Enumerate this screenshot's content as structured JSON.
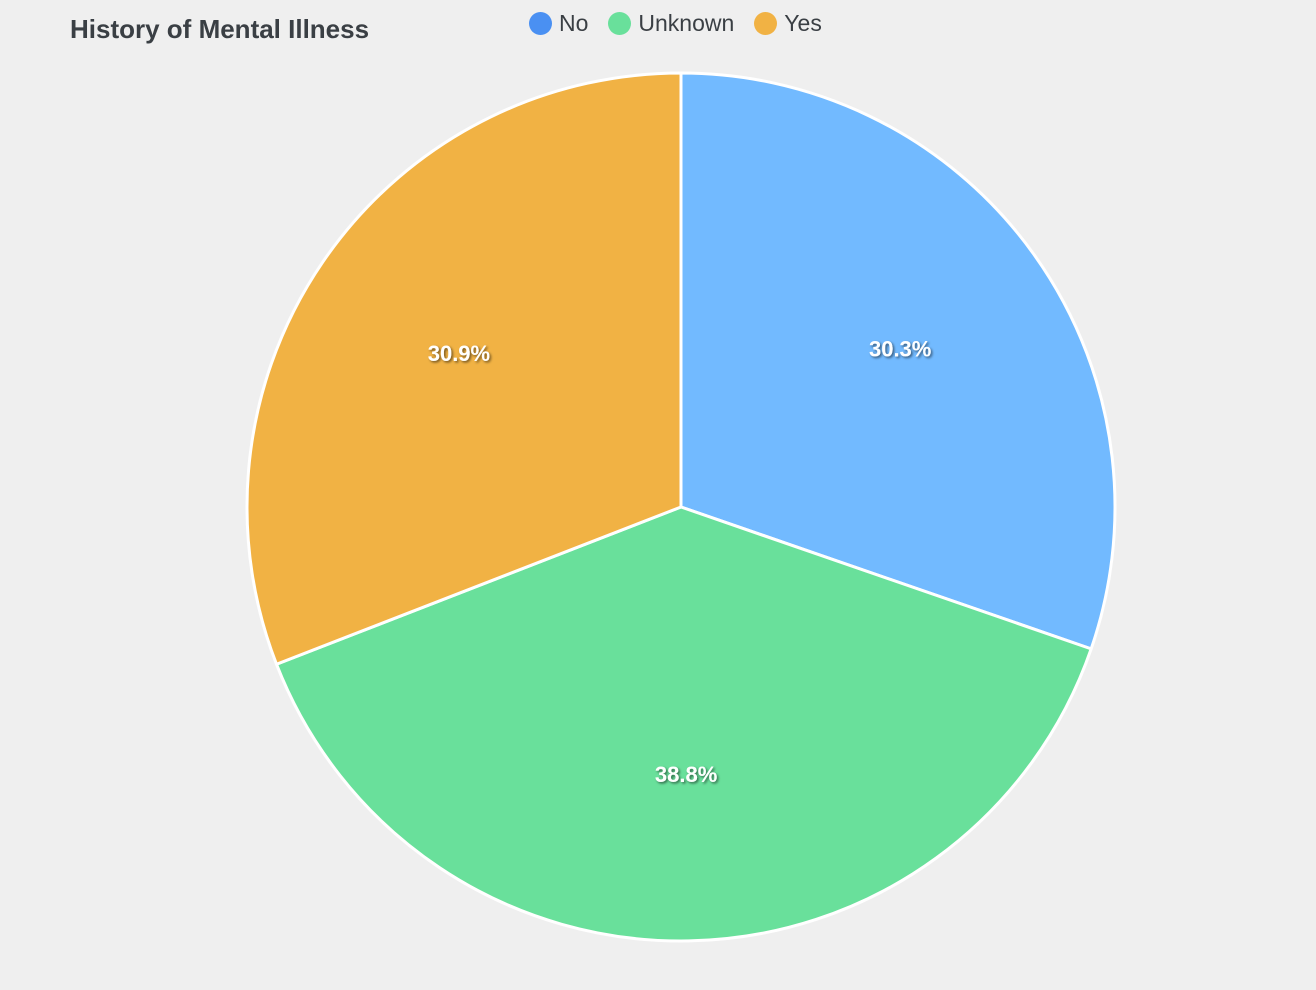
{
  "chart_data": {
    "type": "pie",
    "title": "History of Mental Illness",
    "legend_position": "top",
    "categories": [
      "No",
      "Unknown",
      "Yes"
    ],
    "values": [
      30.3,
      38.8,
      30.9
    ],
    "labels": [
      "30.3%",
      "38.8%",
      "30.9%"
    ],
    "colors": [
      "#72baff",
      "#69e09b",
      "#f1b244"
    ],
    "legend_colors": [
      "#4a90f2",
      "#69e09b",
      "#f1b244"
    ]
  }
}
